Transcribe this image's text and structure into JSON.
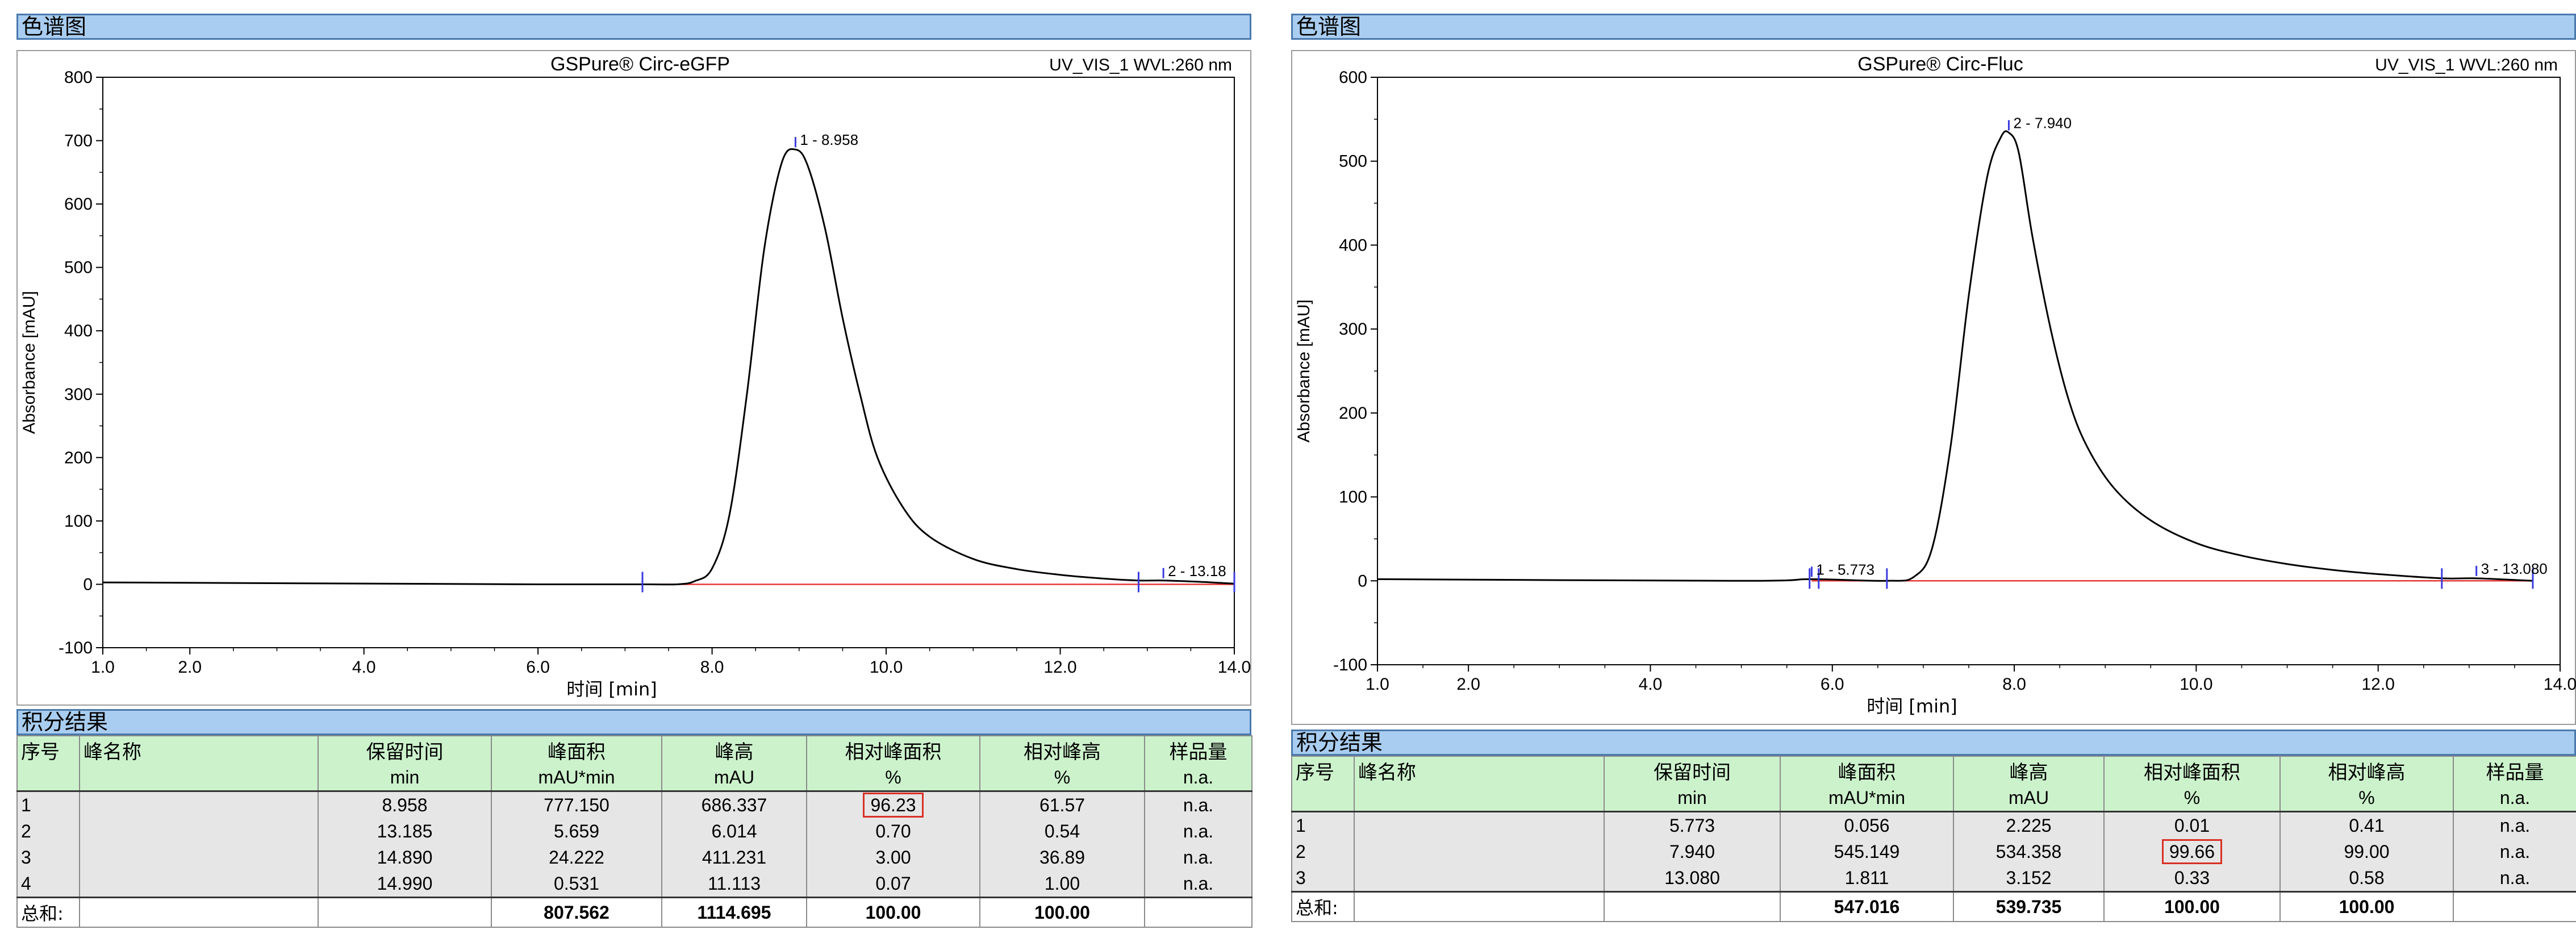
{
  "section_chromatogram": "色谱图",
  "section_results": "积分结果",
  "table_headers": {
    "no": "序号",
    "name": "峰名称",
    "rt": "保留时间",
    "area": "峰面积",
    "height": "峰高",
    "rel_area": "相对峰面积",
    "rel_height": "相对峰高",
    "amount": "样品量"
  },
  "table_units": {
    "rt": "min",
    "area": "mAU*min",
    "height": "mAU",
    "rel_area": "%",
    "rel_height": "%",
    "amount": "n.a."
  },
  "total_label": "总和:",
  "colors": {
    "header_bg": "#a9cdf0",
    "table_head_bg": "#ccf2cc",
    "row_bg": "#e6e6e6",
    "baseline": "#e53935",
    "marker": "#3a3adf",
    "highlight": "#d93025"
  },
  "panels": [
    {
      "results": {
        "rows": [
          {
            "no": "1",
            "name": "",
            "rt": "8.958",
            "area": "777.150",
            "height": "686.337",
            "rel_area": "96.23",
            "rel_height": "61.57",
            "amount": "n.a.",
            "highlight": true
          },
          {
            "no": "2",
            "name": "",
            "rt": "13.185",
            "area": "5.659",
            "height": "6.014",
            "rel_area": "0.70",
            "rel_height": "0.54",
            "amount": "n.a.",
            "highlight": false
          },
          {
            "no": "3",
            "name": "",
            "rt": "14.890",
            "area": "24.222",
            "height": "411.231",
            "rel_area": "3.00",
            "rel_height": "36.89",
            "amount": "n.a.",
            "highlight": false
          },
          {
            "no": "4",
            "name": "",
            "rt": "14.990",
            "area": "0.531",
            "height": "11.113",
            "rel_area": "0.07",
            "rel_height": "1.00",
            "amount": "n.a.",
            "highlight": false
          }
        ],
        "totals": {
          "area": "807.562",
          "height": "1114.695",
          "rel_area": "100.00",
          "rel_height": "100.00"
        }
      }
    },
    {
      "results": {
        "rows": [
          {
            "no": "1",
            "name": "",
            "rt": "5.773",
            "area": "0.056",
            "height": "2.225",
            "rel_area": "0.01",
            "rel_height": "0.41",
            "amount": "n.a.",
            "highlight": false
          },
          {
            "no": "2",
            "name": "",
            "rt": "7.940",
            "area": "545.149",
            "height": "534.358",
            "rel_area": "99.66",
            "rel_height": "99.00",
            "amount": "n.a.",
            "highlight": true
          },
          {
            "no": "3",
            "name": "",
            "rt": "13.080",
            "area": "1.811",
            "height": "3.152",
            "rel_area": "0.33",
            "rel_height": "0.58",
            "amount": "n.a.",
            "highlight": false
          }
        ],
        "totals": {
          "area": "547.016",
          "height": "539.735",
          "rel_area": "100.00",
          "rel_height": "100.00"
        }
      }
    }
  ],
  "chart_data": [
    {
      "type": "line",
      "title": "GSPure® Circ-eGFP",
      "detector_label": "UV_VIS_1 WVL:260 nm",
      "xlabel": "时间 [min]",
      "ylabel": "Absorbance [mAU]",
      "xlim": [
        1.0,
        14.0
      ],
      "ylim": [
        -100,
        800
      ],
      "xticks": [
        {
          "v": 1.0,
          "t": "1.0"
        },
        {
          "v": 2.0,
          "t": "2.0"
        },
        {
          "v": 4.0,
          "t": "4.0"
        },
        {
          "v": 6.0,
          "t": "6.0"
        },
        {
          "v": 8.0,
          "t": "8.0"
        },
        {
          "v": 10.0,
          "t": "10.0"
        },
        {
          "v": 12.0,
          "t": "12.0"
        },
        {
          "v": 14.0,
          "t": "14.0"
        }
      ],
      "yticks": [
        {
          "v": -100,
          "t": "-100"
        },
        {
          "v": 0,
          "t": "0"
        },
        {
          "v": 100,
          "t": "100"
        },
        {
          "v": 200,
          "t": "200"
        },
        {
          "v": 300,
          "t": "300"
        },
        {
          "v": 400,
          "t": "400"
        },
        {
          "v": 500,
          "t": "500"
        },
        {
          "v": 600,
          "t": "600"
        },
        {
          "v": 700,
          "t": "700"
        },
        {
          "v": 800,
          "t": "800"
        }
      ],
      "series": [
        {
          "x": [
            1.0,
            6.0,
            7.2,
            7.6,
            7.8,
            8.0,
            8.2,
            8.4,
            8.6,
            8.8,
            8.958,
            9.1,
            9.3,
            9.5,
            9.7,
            9.9,
            10.2,
            10.5,
            11.0,
            11.5,
            12.0,
            12.5,
            12.9,
            13.185,
            13.6,
            14.0
          ],
          "y": [
            3,
            0,
            0,
            0,
            5,
            25,
            110,
            300,
            530,
            665,
            686,
            660,
            560,
            420,
            300,
            200,
            120,
            75,
            40,
            24,
            15,
            9,
            6,
            6,
            4,
            1
          ]
        }
      ],
      "baseline": {
        "x": [
          7.2,
          14.0
        ],
        "y": [
          0,
          0
        ]
      },
      "markers": [
        7.2,
        12.9,
        14.0
      ],
      "peak_labels": [
        {
          "x": 8.958,
          "y": 686,
          "text": "1 - 8.958"
        },
        {
          "x": 13.185,
          "y": 6,
          "text": "2 - 13.18"
        }
      ]
    },
    {
      "type": "line",
      "title": "GSPure® Circ-Fluc",
      "detector_label": "UV_VIS_1 WVL:260 nm",
      "xlabel": "时间 [min]",
      "ylabel": "Absorbance [mAU]",
      "xlim": [
        1.0,
        14.0
      ],
      "ylim": [
        -100,
        600
      ],
      "xticks": [
        {
          "v": 1.0,
          "t": "1.0"
        },
        {
          "v": 2.0,
          "t": "2.0"
        },
        {
          "v": 4.0,
          "t": "4.0"
        },
        {
          "v": 6.0,
          "t": "6.0"
        },
        {
          "v": 8.0,
          "t": "8.0"
        },
        {
          "v": 10.0,
          "t": "10.0"
        },
        {
          "v": 12.0,
          "t": "12.0"
        },
        {
          "v": 14.0,
          "t": "14.0"
        }
      ],
      "yticks": [
        {
          "v": -100,
          "t": "-100"
        },
        {
          "v": 0,
          "t": "0"
        },
        {
          "v": 100,
          "t": "100"
        },
        {
          "v": 200,
          "t": "200"
        },
        {
          "v": 300,
          "t": "300"
        },
        {
          "v": 400,
          "t": "400"
        },
        {
          "v": 500,
          "t": "500"
        },
        {
          "v": 600,
          "t": "600"
        }
      ],
      "series": [
        {
          "x": [
            1.0,
            5.0,
            5.773,
            6.6,
            6.9,
            7.1,
            7.3,
            7.5,
            7.7,
            7.85,
            7.94,
            8.05,
            8.2,
            8.4,
            8.6,
            8.8,
            9.1,
            9.5,
            10.0,
            10.5,
            11.0,
            11.5,
            12.0,
            12.7,
            13.08,
            13.7
          ],
          "y": [
            2,
            0,
            2,
            0,
            5,
            40,
            160,
            340,
            480,
            528,
            534,
            510,
            410,
            300,
            215,
            160,
            110,
            72,
            45,
            30,
            20,
            13,
            8,
            3,
            3,
            0
          ]
        }
      ],
      "baseline": {
        "x": [
          5.773,
          13.7
        ],
        "y": [
          0,
          0
        ]
      },
      "markers": [
        5.75,
        5.85,
        6.6,
        12.7,
        13.7
      ],
      "peak_labels": [
        {
          "x": 5.773,
          "y": 2,
          "text": "1 - 5.773"
        },
        {
          "x": 7.94,
          "y": 534,
          "text": "2 - 7.940"
        },
        {
          "x": 13.08,
          "y": 3,
          "text": "3 - 13.080"
        }
      ]
    }
  ]
}
